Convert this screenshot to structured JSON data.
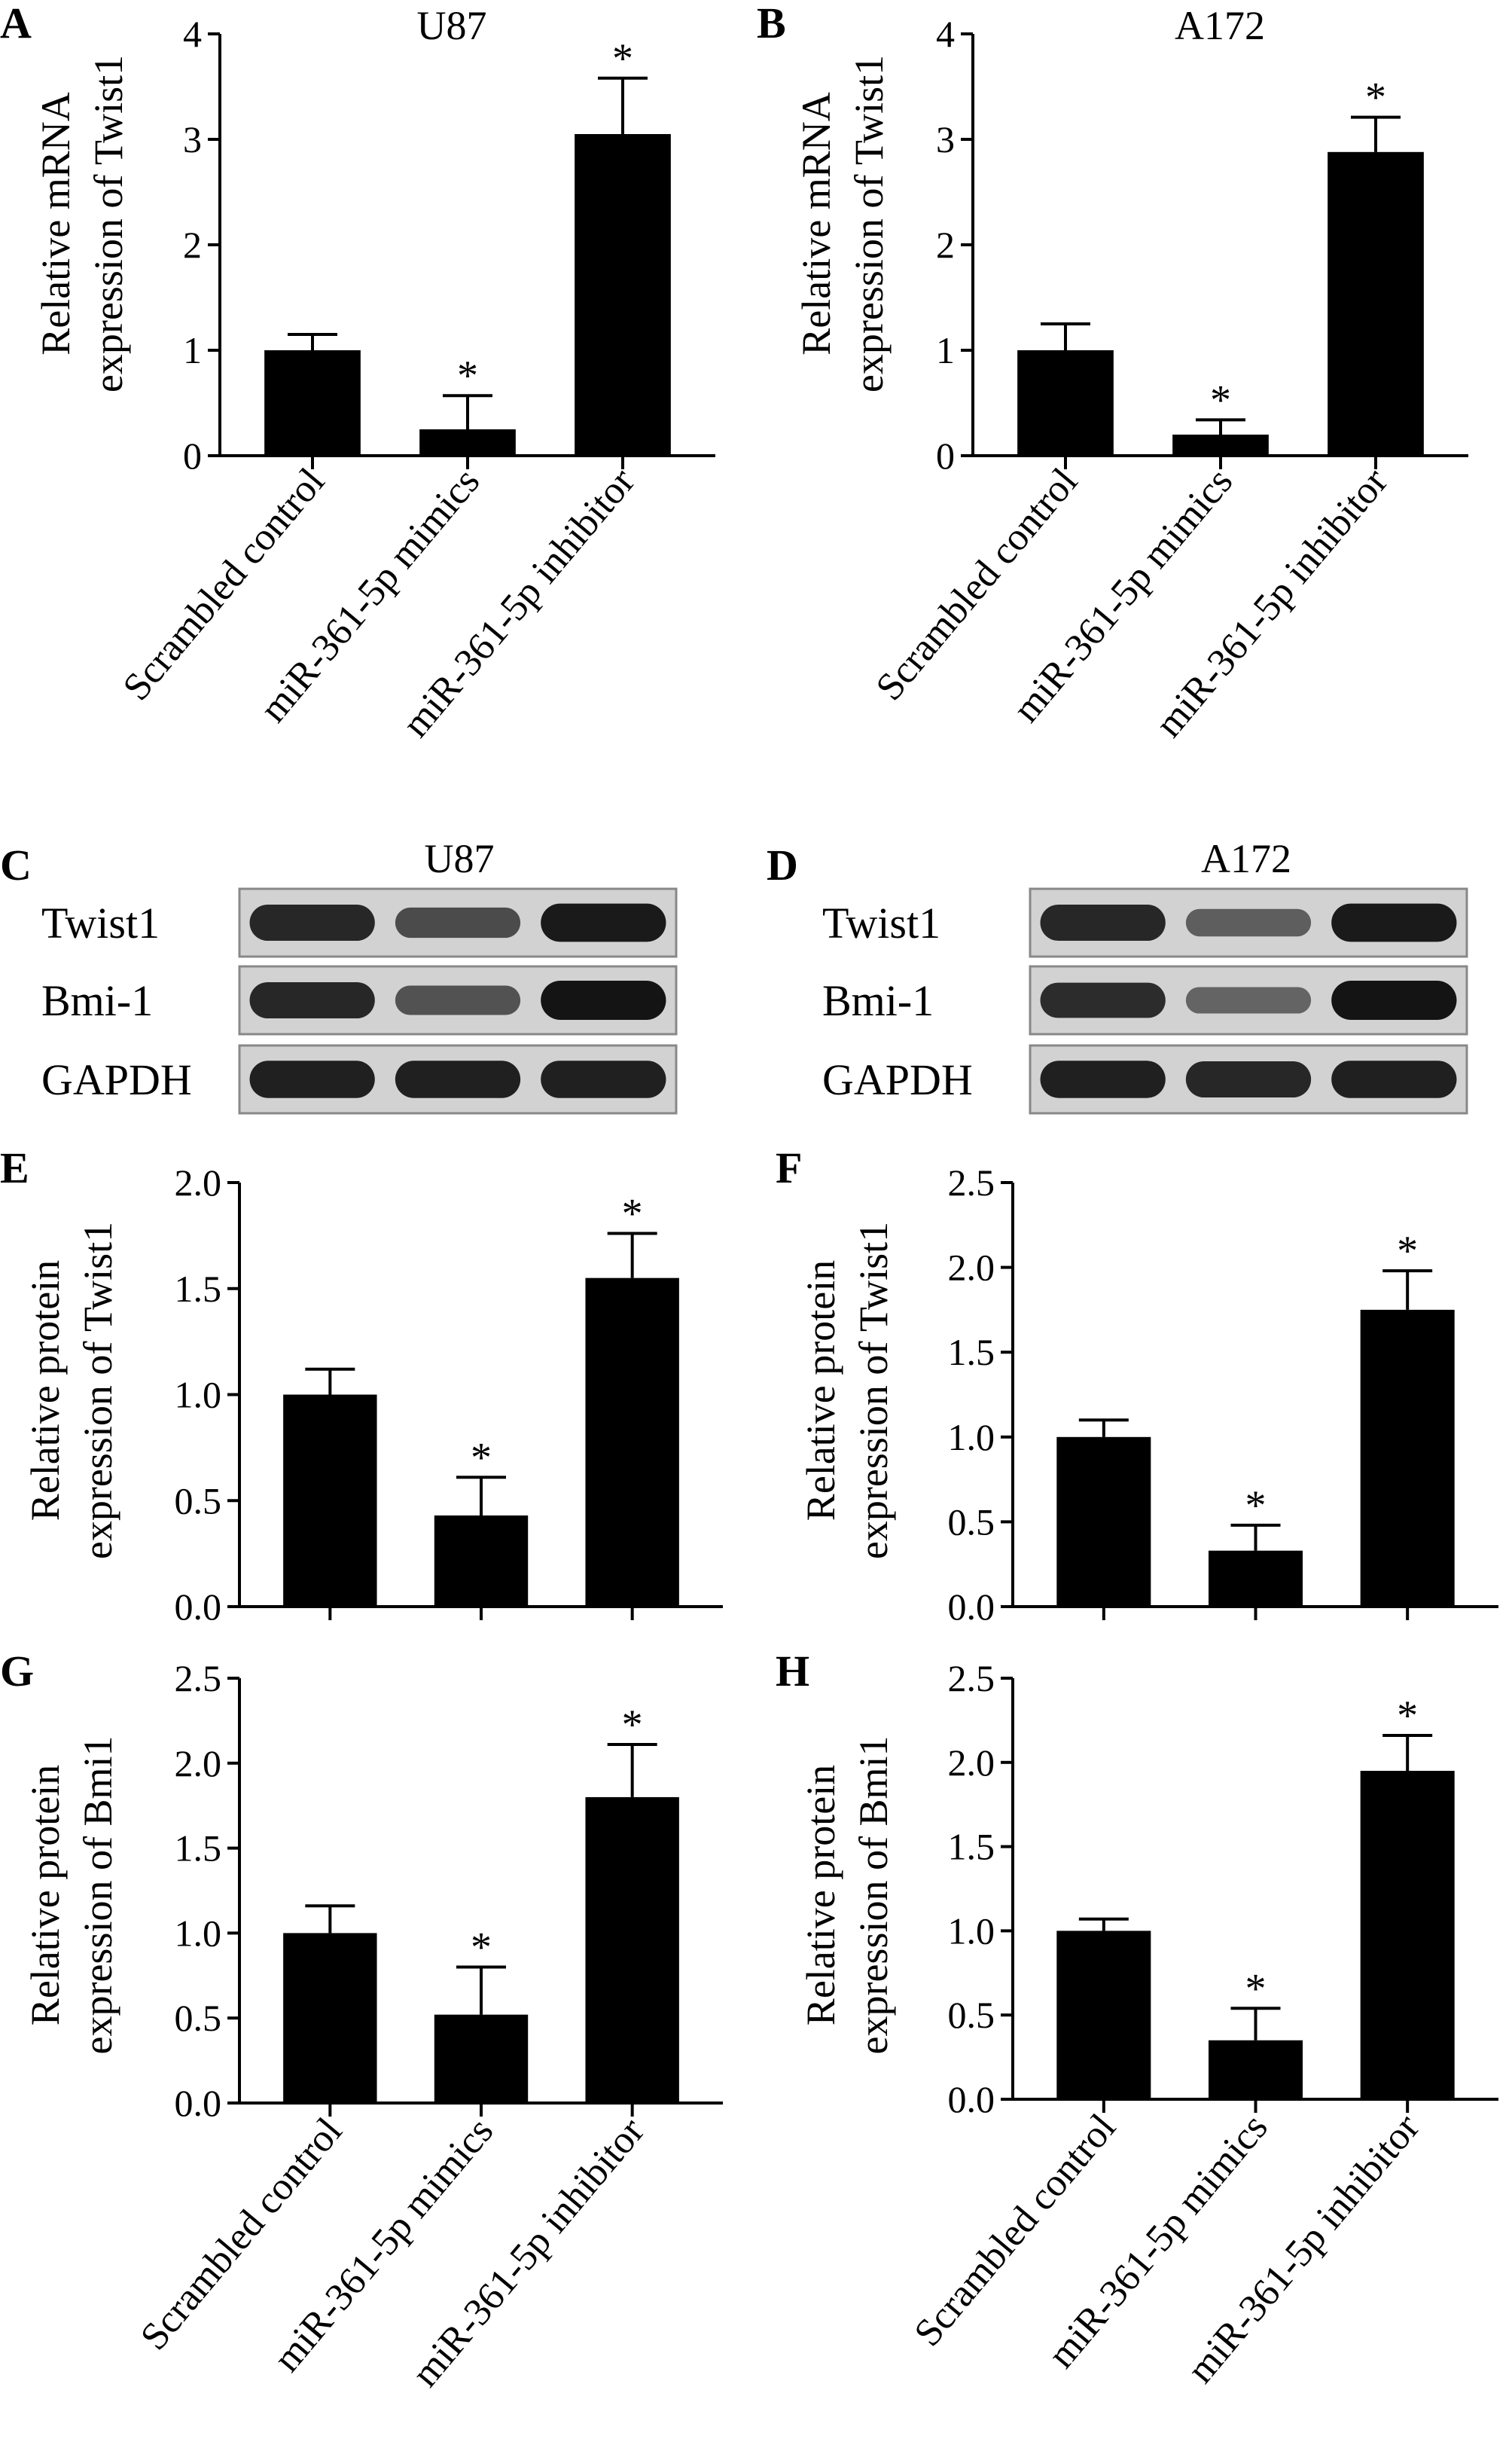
{
  "chart_data": [
    {
      "panel": "A",
      "type": "bar",
      "title": "U87",
      "ylabel": [
        "Relative mRNA",
        "expression of Twist1"
      ],
      "categories": [
        "Scrambled control",
        "miR-361-5p mimics",
        "miR-361-5p inhibitor"
      ],
      "values": [
        1.0,
        0.25,
        3.05
      ],
      "errors": [
        0.15,
        0.32,
        0.53
      ],
      "significance": [
        "",
        "*",
        "*"
      ],
      "ylim": [
        0,
        4
      ],
      "yticks": [
        "0",
        "1",
        "2",
        "3",
        "4"
      ]
    },
    {
      "panel": "B",
      "type": "bar",
      "title": "A172",
      "ylabel": [
        "Relative mRNA",
        "expression of Twist1"
      ],
      "categories": [
        "Scrambled control",
        "miR-361-5p mimics",
        "miR-361-5p inhibitor"
      ],
      "values": [
        1.0,
        0.2,
        2.88
      ],
      "errors": [
        0.25,
        0.14,
        0.33
      ],
      "significance": [
        "",
        "*",
        "*"
      ],
      "ylim": [
        0,
        4
      ],
      "yticks": [
        "0",
        "1",
        "2",
        "3",
        "4"
      ]
    },
    {
      "panel": "E",
      "type": "bar",
      "title": "",
      "ylabel": [
        "Relative protein",
        "expression of Twist1"
      ],
      "categories": [
        "Scrambled control",
        "miR-361-5p mimics",
        "miR-361-5p inhibitor"
      ],
      "values": [
        1.0,
        0.43,
        1.55
      ],
      "errors": [
        0.12,
        0.18,
        0.21
      ],
      "significance": [
        "",
        "*",
        "*"
      ],
      "ylim": [
        0,
        2.0
      ],
      "yticks": [
        "0.0",
        "0.5",
        "1.0",
        "1.5",
        "2.0"
      ]
    },
    {
      "panel": "F",
      "type": "bar",
      "title": "",
      "ylabel": [
        "Relative protein",
        "expression of Twist1"
      ],
      "categories": [
        "Scrambled control",
        "miR-361-5p mimics",
        "miR-361-5p inhibitor"
      ],
      "values": [
        1.0,
        0.33,
        1.75
      ],
      "errors": [
        0.1,
        0.15,
        0.23
      ],
      "significance": [
        "",
        "*",
        "*"
      ],
      "ylim": [
        0,
        2.5
      ],
      "yticks": [
        "0.0",
        "0.5",
        "1.0",
        "1.5",
        "2.0",
        "2.5"
      ]
    },
    {
      "panel": "G",
      "type": "bar",
      "title": "",
      "ylabel": [
        "Relative protein",
        "expression of Bmi1"
      ],
      "categories": [
        "Scrambled control",
        "miR-361-5p mimics",
        "miR-361-5p inhibitor"
      ],
      "values": [
        1.0,
        0.52,
        1.8
      ],
      "errors": [
        0.16,
        0.28,
        0.31
      ],
      "significance": [
        "",
        "*",
        "*"
      ],
      "ylim": [
        0,
        2.5
      ],
      "yticks": [
        "0.0",
        "0.5",
        "1.0",
        "1.5",
        "2.0",
        "2.5"
      ]
    },
    {
      "panel": "H",
      "type": "bar",
      "title": "",
      "ylabel": [
        "Relative protein",
        "expression of Bmi1"
      ],
      "categories": [
        "Scrambled control",
        "miR-361-5p mimics",
        "miR-361-5p inhibitor"
      ],
      "values": [
        1.0,
        0.35,
        1.95
      ],
      "errors": [
        0.07,
        0.19,
        0.21
      ],
      "significance": [
        "",
        "*",
        "*"
      ],
      "ylim": [
        0,
        2.5
      ],
      "yticks": [
        "0.0",
        "0.5",
        "1.0",
        "1.5",
        "2.0",
        "2.5"
      ]
    }
  ],
  "blots": [
    {
      "panel": "C",
      "title": "U87",
      "rows": [
        {
          "label": "Twist1",
          "intensities": [
            0.85,
            0.55,
            0.95
          ]
        },
        {
          "label": "Bmi-1",
          "intensities": [
            0.85,
            0.5,
            1.0
          ]
        },
        {
          "label": "GAPDH",
          "intensities": [
            0.9,
            0.9,
            0.9
          ]
        }
      ]
    },
    {
      "panel": "D",
      "title": "A172",
      "rows": [
        {
          "label": "Twist1",
          "intensities": [
            0.85,
            0.4,
            0.95
          ]
        },
        {
          "label": "Bmi-1",
          "intensities": [
            0.8,
            0.35,
            1.0
          ]
        },
        {
          "label": "GAPDH",
          "intensities": [
            0.9,
            0.85,
            0.9
          ]
        }
      ]
    }
  ],
  "style": {
    "bar_color": "#000000",
    "blot_background": "#d2d2d2",
    "band_color": "#141414"
  }
}
